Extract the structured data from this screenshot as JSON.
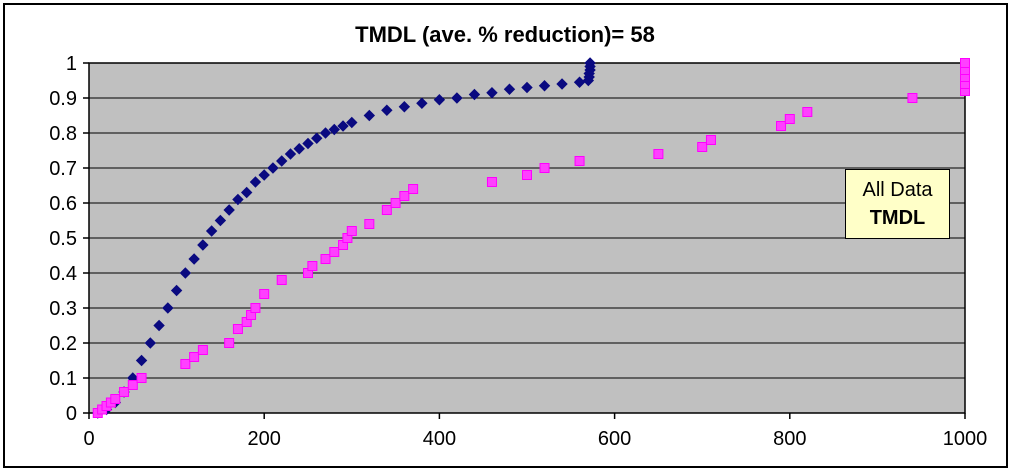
{
  "chart_data": {
    "type": "scatter",
    "title": "TMDL (ave. % reduction)= 58",
    "xlabel": "",
    "ylabel": "",
    "xlim": [
      0,
      1000
    ],
    "ylim": [
      0,
      1
    ],
    "x_ticks": [
      "0",
      "200",
      "400",
      "600",
      "800",
      "1000"
    ],
    "y_ticks": [
      "0",
      "0.1",
      "0.2",
      "0.3",
      "0.4",
      "0.5",
      "0.6",
      "0.7",
      "0.8",
      "0.9",
      "1"
    ],
    "grid": "horizontal",
    "plot_background": "#c0c0c0",
    "legend_lines": [
      "All Data",
      "TMDL"
    ],
    "series": [
      {
        "color": "#0a0a80",
        "marker": "diamond",
        "points": [
          [
            10,
            0.0
          ],
          [
            20,
            0.01
          ],
          [
            30,
            0.03
          ],
          [
            40,
            0.06
          ],
          [
            50,
            0.1
          ],
          [
            60,
            0.15
          ],
          [
            70,
            0.2
          ],
          [
            80,
            0.25
          ],
          [
            90,
            0.3
          ],
          [
            100,
            0.35
          ],
          [
            110,
            0.4
          ],
          [
            120,
            0.44
          ],
          [
            130,
            0.48
          ],
          [
            140,
            0.52
          ],
          [
            150,
            0.55
          ],
          [
            160,
            0.58
          ],
          [
            170,
            0.61
          ],
          [
            180,
            0.63
          ],
          [
            190,
            0.66
          ],
          [
            200,
            0.68
          ],
          [
            210,
            0.7
          ],
          [
            220,
            0.72
          ],
          [
            230,
            0.74
          ],
          [
            240,
            0.755
          ],
          [
            250,
            0.77
          ],
          [
            260,
            0.785
          ],
          [
            270,
            0.8
          ],
          [
            280,
            0.81
          ],
          [
            290,
            0.82
          ],
          [
            300,
            0.83
          ],
          [
            320,
            0.85
          ],
          [
            340,
            0.865
          ],
          [
            360,
            0.875
          ],
          [
            380,
            0.885
          ],
          [
            400,
            0.895
          ],
          [
            420,
            0.9
          ],
          [
            440,
            0.91
          ],
          [
            460,
            0.915
          ],
          [
            480,
            0.925
          ],
          [
            500,
            0.93
          ],
          [
            520,
            0.935
          ],
          [
            540,
            0.94
          ],
          [
            560,
            0.945
          ],
          [
            570,
            0.95
          ],
          [
            571,
            0.96
          ],
          [
            571,
            0.97
          ],
          [
            572,
            0.98
          ],
          [
            572,
            0.99
          ],
          [
            572,
            1.0
          ]
        ]
      },
      {
        "color": "#ff40ff",
        "marker": "square",
        "points": [
          [
            10,
            0.0
          ],
          [
            15,
            0.01
          ],
          [
            20,
            0.02
          ],
          [
            25,
            0.03
          ],
          [
            30,
            0.04
          ],
          [
            40,
            0.06
          ],
          [
            50,
            0.08
          ],
          [
            60,
            0.1
          ],
          [
            110,
            0.14
          ],
          [
            120,
            0.16
          ],
          [
            130,
            0.18
          ],
          [
            160,
            0.2
          ],
          [
            170,
            0.24
          ],
          [
            180,
            0.26
          ],
          [
            185,
            0.28
          ],
          [
            190,
            0.3
          ],
          [
            200,
            0.34
          ],
          [
            220,
            0.38
          ],
          [
            250,
            0.4
          ],
          [
            255,
            0.42
          ],
          [
            270,
            0.44
          ],
          [
            280,
            0.46
          ],
          [
            290,
            0.48
          ],
          [
            295,
            0.5
          ],
          [
            300,
            0.52
          ],
          [
            320,
            0.54
          ],
          [
            340,
            0.58
          ],
          [
            350,
            0.6
          ],
          [
            360,
            0.62
          ],
          [
            370,
            0.64
          ],
          [
            460,
            0.66
          ],
          [
            500,
            0.68
          ],
          [
            520,
            0.7
          ],
          [
            560,
            0.72
          ],
          [
            650,
            0.74
          ],
          [
            700,
            0.76
          ],
          [
            710,
            0.78
          ],
          [
            790,
            0.82
          ],
          [
            800,
            0.84
          ],
          [
            820,
            0.86
          ],
          [
            940,
            0.9
          ],
          [
            1000,
            0.92
          ],
          [
            1000,
            0.94
          ],
          [
            1000,
            0.96
          ],
          [
            1000,
            0.98
          ],
          [
            1000,
            1.0
          ]
        ]
      }
    ]
  }
}
